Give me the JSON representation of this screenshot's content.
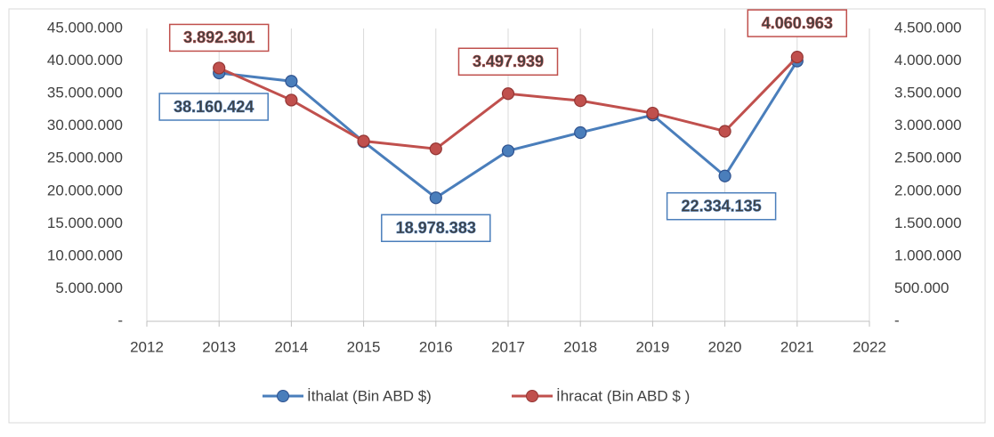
{
  "chart_data": {
    "type": "line",
    "x": [
      2013,
      2014,
      2015,
      2016,
      2017,
      2018,
      2019,
      2020,
      2021
    ],
    "xlim": [
      2012,
      2022
    ],
    "xticks": [
      2012,
      2013,
      2014,
      2015,
      2016,
      2017,
      2018,
      2019,
      2020,
      2021,
      2022
    ],
    "ylim": [
      0,
      45000000
    ],
    "yticks": [
      {
        "value": 0,
        "label": "-"
      },
      {
        "value": 5000000,
        "label": "5.000.000"
      },
      {
        "value": 10000000,
        "label": "10.000.000"
      },
      {
        "value": 15000000,
        "label": "15.000.000"
      },
      {
        "value": 20000000,
        "label": "20.000.000"
      },
      {
        "value": 25000000,
        "label": "25.000.000"
      },
      {
        "value": 30000000,
        "label": "30.000.000"
      },
      {
        "value": 35000000,
        "label": "35.000.000"
      },
      {
        "value": 40000000,
        "label": "40.000.000"
      },
      {
        "value": 45000000,
        "label": "45.000.000"
      }
    ],
    "y2lim": [
      0,
      4500000
    ],
    "y2ticks": [
      {
        "value": 0,
        "label": "-"
      },
      {
        "value": 500000,
        "label": "500.000"
      },
      {
        "value": 1000000,
        "label": "1.000.000"
      },
      {
        "value": 1500000,
        "label": "1.500.000"
      },
      {
        "value": 2000000,
        "label": "2.000.000"
      },
      {
        "value": 2500000,
        "label": "2.500.000"
      },
      {
        "value": 3000000,
        "label": "3.000.000"
      },
      {
        "value": 3500000,
        "label": "3.500.000"
      },
      {
        "value": 4000000,
        "label": "4.000.000"
      },
      {
        "value": 4500000,
        "label": "4.500.000"
      }
    ],
    "grid": true,
    "legend": "bottom",
    "series": [
      {
        "name": "İthalat (Bin ABD $)",
        "color": "#4a7ebb",
        "values": [
          38160424,
          36900000,
          27600000,
          18978383,
          26200000,
          29000000,
          31700000,
          22334135,
          40000000
        ],
        "value_labels": [
          "38.160.424",
          null,
          null,
          "18.978.383",
          null,
          null,
          null,
          "22.334.135",
          null
        ]
      },
      {
        "name": "İhracat (Bin ABD $ )",
        "color": "#c0504d",
        "axis": "y2",
        "values": [
          3892301,
          3400000,
          2770000,
          2650000,
          3497939,
          3390000,
          3200000,
          2920000,
          4060963
        ],
        "value_labels": [
          "3.892.301",
          null,
          null,
          null,
          "3.497.939",
          null,
          null,
          null,
          "4.060.963"
        ]
      }
    ]
  }
}
